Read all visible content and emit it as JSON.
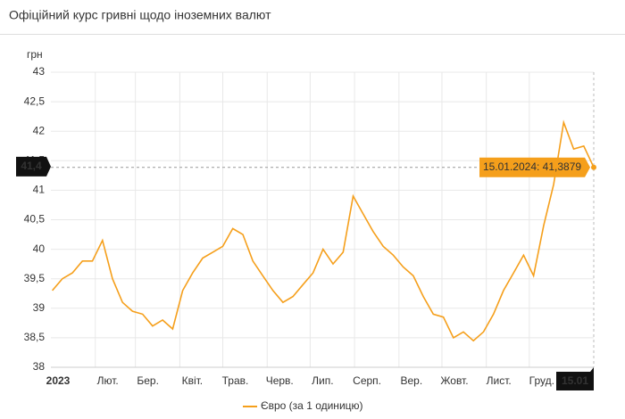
{
  "chart_data": {
    "type": "line",
    "title": "Офіційний курс гривні щодо іноземних валют",
    "y_label": "грн",
    "x": [
      "2023-01-02",
      "2023-01-09",
      "2023-01-16",
      "2023-01-23",
      "2023-01-30",
      "2023-02-06",
      "2023-02-13",
      "2023-02-20",
      "2023-02-27",
      "2023-03-06",
      "2023-03-13",
      "2023-03-20",
      "2023-03-27",
      "2023-04-03",
      "2023-04-10",
      "2023-04-17",
      "2023-04-24",
      "2023-05-01",
      "2023-05-08",
      "2023-05-15",
      "2023-05-22",
      "2023-05-29",
      "2023-06-05",
      "2023-06-12",
      "2023-06-19",
      "2023-06-26",
      "2023-07-03",
      "2023-07-10",
      "2023-07-17",
      "2023-07-24",
      "2023-07-31",
      "2023-08-07",
      "2023-08-14",
      "2023-08-21",
      "2023-08-28",
      "2023-09-04",
      "2023-09-11",
      "2023-09-18",
      "2023-09-25",
      "2023-10-02",
      "2023-10-09",
      "2023-10-16",
      "2023-10-23",
      "2023-10-30",
      "2023-11-06",
      "2023-11-13",
      "2023-11-20",
      "2023-11-27",
      "2023-12-04",
      "2023-12-11",
      "2023-12-18",
      "2023-12-25",
      "2024-01-01",
      "2024-01-08",
      "2024-01-15"
    ],
    "series": [
      {
        "name": "Євро (за 1 одиницю)",
        "color": "#f59f1b",
        "values": [
          39.3,
          39.5,
          39.6,
          39.8,
          39.8,
          40.15,
          39.5,
          39.1,
          38.95,
          38.9,
          38.7,
          38.8,
          38.65,
          39.3,
          39.6,
          39.85,
          39.95,
          40.05,
          40.35,
          40.25,
          39.8,
          39.55,
          39.3,
          39.1,
          39.2,
          39.4,
          39.6,
          40.0,
          39.75,
          39.95,
          40.9,
          40.6,
          40.3,
          40.05,
          39.9,
          39.7,
          39.55,
          39.2,
          38.9,
          38.85,
          38.5,
          38.6,
          38.45,
          38.6,
          38.9,
          39.3,
          39.6,
          39.9,
          39.55,
          40.4,
          41.1,
          42.15,
          41.7,
          41.75,
          41.3879
        ]
      }
    ],
    "xlim": [
      "2023-01-01",
      "2024-01-15"
    ],
    "xticks": [
      {
        "value": "2023-01-01",
        "label": "2023"
      },
      {
        "value": "2023-02-01",
        "label": "Лют."
      },
      {
        "value": "2023-03-01",
        "label": "Бер."
      },
      {
        "value": "2023-04-01",
        "label": "Квіт."
      },
      {
        "value": "2023-05-01",
        "label": "Трав."
      },
      {
        "value": "2023-06-01",
        "label": "Черв."
      },
      {
        "value": "2023-07-01",
        "label": "Лип."
      },
      {
        "value": "2023-08-01",
        "label": "Серп."
      },
      {
        "value": "2023-09-01",
        "label": "Вер."
      },
      {
        "value": "2023-10-01",
        "label": "Жовт."
      },
      {
        "value": "2023-11-01",
        "label": "Лист."
      },
      {
        "value": "2023-12-01",
        "label": "Груд."
      }
    ],
    "ylim": [
      38,
      43
    ],
    "yticks": [
      38,
      {
        "value": 38.5,
        "label": "38,5"
      },
      39,
      {
        "value": 39.5,
        "label": "39,5"
      },
      40,
      {
        "value": 40.5,
        "label": "40,5"
      },
      41,
      {
        "value": 41.5,
        "label": "41,5"
      },
      42,
      {
        "value": 42.5,
        "label": "42,5"
      },
      43
    ],
    "grid": true,
    "y_marker": {
      "value": 41.4,
      "label": "41,4"
    },
    "x_marker": {
      "value": "2024-01-15",
      "label": "15.01"
    },
    "tooltip": {
      "value": 41.3879,
      "text": "15.01.2024: 41,3879"
    }
  }
}
